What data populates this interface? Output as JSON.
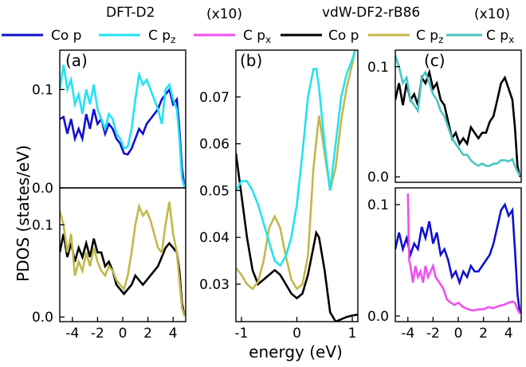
{
  "figure": {
    "ylabel": "PDOS (states/eV)",
    "xlabel": "energy (eV)",
    "legend_left": {
      "title": "DFT-D2",
      "x10": "(x10)",
      "items": [
        {
          "label": "Co p",
          "color": "#1010d0"
        },
        {
          "label": "C p",
          "sub": "z",
          "color": "#22e3f0"
        },
        {
          "label": "C p",
          "sub": "x",
          "color": "#f050f0"
        }
      ]
    },
    "legend_right": {
      "title": "vdW-DF2-rB86",
      "x10": "(x10)",
      "items": [
        {
          "label": "Co p",
          "color": "#000000"
        },
        {
          "label": "C p",
          "sub": "z",
          "color": "#c2b84a"
        },
        {
          "label": "C p",
          "sub": "x",
          "color": "#48c6c4"
        }
      ]
    }
  },
  "chart_data": [
    {
      "panel": "(a) top",
      "type": "line",
      "xlim": [
        -5,
        5
      ],
      "ylim": [
        0,
        0.14
      ],
      "yticks": [
        "0.0",
        "0.1"
      ],
      "series": [
        {
          "name": "Co p",
          "color": "#1010d0",
          "x": [
            -5,
            -4.7,
            -4.4,
            -4.1,
            -3.8,
            -3.5,
            -3.2,
            -2.9,
            -2.6,
            -2.3,
            -2,
            -1.7,
            -1.4,
            -1.1,
            -0.8,
            -0.5,
            -0.2,
            0.1,
            0.4,
            0.7,
            1,
            1.3,
            1.6,
            1.9,
            2.2,
            2.5,
            2.8,
            3.1,
            3.4,
            3.7,
            4,
            4.3,
            4.5,
            4.7,
            4.9
          ],
          "y": [
            0.07,
            0.072,
            0.055,
            0.07,
            0.05,
            0.06,
            0.05,
            0.075,
            0.06,
            0.08,
            0.065,
            0.07,
            0.055,
            0.065,
            0.06,
            0.05,
            0.045,
            0.035,
            0.034,
            0.04,
            0.05,
            0.06,
            0.055,
            0.065,
            0.07,
            0.075,
            0.08,
            0.09,
            0.095,
            0.1,
            0.085,
            0.09,
            0.06,
            0.02,
            0.001
          ]
        },
        {
          "name": "C p_z",
          "color": "#22e3f0",
          "x": [
            -5,
            -4.7,
            -4.4,
            -4.1,
            -3.8,
            -3.5,
            -3.2,
            -2.9,
            -2.6,
            -2.3,
            -2,
            -1.7,
            -1.4,
            -1.1,
            -0.8,
            -0.5,
            -0.2,
            0.1,
            0.4,
            0.7,
            1,
            1.3,
            1.6,
            1.9,
            2.2,
            2.5,
            2.8,
            3.1,
            3.4,
            3.7,
            4,
            4.3,
            4.5,
            4.7,
            4.9
          ],
          "y": [
            0.1,
            0.125,
            0.1,
            0.11,
            0.085,
            0.095,
            0.075,
            0.1,
            0.085,
            0.105,
            0.08,
            0.07,
            0.06,
            0.075,
            0.07,
            0.055,
            0.05,
            0.04,
            0.042,
            0.06,
            0.09,
            0.115,
            0.105,
            0.11,
            0.1,
            0.09,
            0.08,
            0.065,
            0.1,
            0.105,
            0.09,
            0.08,
            0.05,
            0.01,
            0.001
          ]
        }
      ]
    },
    {
      "panel": "(a) bottom",
      "type": "line",
      "xlim": [
        -5,
        5
      ],
      "ylim": [
        -0.005,
        0.14
      ],
      "yticks": [
        "0.0",
        "0.1"
      ],
      "xticks": [
        "-4",
        "-2",
        "0",
        "2",
        "4"
      ],
      "series": [
        {
          "name": "Co p",
          "color": "#000000",
          "x": [
            -5,
            -4.7,
            -4.4,
            -4.1,
            -3.8,
            -3.5,
            -3.2,
            -2.9,
            -2.6,
            -2.3,
            -2,
            -1.7,
            -1.4,
            -1.1,
            -0.8,
            -0.5,
            -0.2,
            0.1,
            0.4,
            0.7,
            1,
            1.3,
            1.6,
            1.9,
            2.2,
            2.5,
            2.8,
            3.1,
            3.4,
            3.7,
            4,
            4.3,
            4.5,
            4.7,
            4.9
          ],
          "y": [
            0.07,
            0.09,
            0.065,
            0.08,
            0.06,
            0.075,
            0.065,
            0.08,
            0.065,
            0.085,
            0.07,
            0.07,
            0.055,
            0.06,
            0.05,
            0.035,
            0.03,
            0.025,
            0.03,
            0.035,
            0.045,
            0.04,
            0.035,
            0.04,
            0.045,
            0.05,
            0.055,
            0.065,
            0.075,
            0.08,
            0.075,
            0.07,
            0.05,
            0.015,
            0.001
          ]
        },
        {
          "name": "C p_z",
          "color": "#c2b84a",
          "x": [
            -5,
            -4.7,
            -4.4,
            -4.1,
            -3.8,
            -3.5,
            -3.2,
            -2.9,
            -2.6,
            -2.3,
            -2,
            -1.7,
            -1.4,
            -1.1,
            -0.8,
            -0.5,
            -0.2,
            0.1,
            0.4,
            0.7,
            1,
            1.3,
            1.6,
            1.9,
            2.2,
            2.5,
            2.8,
            3.1,
            3.4,
            3.7,
            4,
            4.3,
            4.5,
            4.7,
            4.9
          ],
          "y": [
            0.115,
            0.1,
            0.07,
            0.09,
            0.045,
            0.06,
            0.05,
            0.07,
            0.055,
            0.075,
            0.06,
            0.05,
            0.045,
            0.055,
            0.05,
            0.04,
            0.035,
            0.03,
            0.045,
            0.07,
            0.1,
            0.12,
            0.11,
            0.115,
            0.105,
            0.09,
            0.075,
            0.07,
            0.1,
            0.125,
            0.09,
            0.07,
            0.04,
            0.01,
            0.001
          ]
        }
      ]
    },
    {
      "panel": "(b)",
      "type": "line",
      "xlim": [
        -1.1,
        1.1
      ],
      "ylim": [
        0.022,
        0.08
      ],
      "yticks": [
        "0.03",
        "0.04",
        "0.05",
        "0.06",
        "0.07"
      ],
      "xticks": [
        "-1",
        "0",
        "1"
      ],
      "series": [
        {
          "name": "Co p",
          "color": "#000000",
          "x": [
            -1.1,
            -1.0,
            -0.9,
            -0.8,
            -0.7,
            -0.6,
            -0.5,
            -0.4,
            -0.3,
            -0.2,
            -0.1,
            0,
            0.1,
            0.2,
            0.3,
            0.35,
            0.4,
            0.5,
            0.6,
            0.7,
            0.8,
            0.9,
            1.0,
            1.1
          ],
          "y": [
            0.058,
            0.049,
            0.04,
            0.033,
            0.03,
            0.031,
            0.032,
            0.033,
            0.032,
            0.03,
            0.028,
            0.027,
            0.028,
            0.032,
            0.038,
            0.041,
            0.04,
            0.033,
            0.024,
            0.022,
            0.0225,
            0.023,
            0.0233,
            0.0235
          ]
        },
        {
          "name": "C p_z",
          "color": "#c2b84a",
          "x": [
            -1.1,
            -1.0,
            -0.9,
            -0.8,
            -0.7,
            -0.6,
            -0.5,
            -0.4,
            -0.3,
            -0.2,
            -0.1,
            0,
            0.1,
            0.2,
            0.3,
            0.4,
            0.5,
            0.6,
            0.7,
            0.8,
            0.9,
            1.0,
            1.05
          ],
          "y": [
            0.0335,
            0.032,
            0.03,
            0.029,
            0.0305,
            0.035,
            0.042,
            0.0445,
            0.042,
            0.036,
            0.031,
            0.029,
            0.03,
            0.036,
            0.055,
            0.066,
            0.058,
            0.05,
            0.055,
            0.065,
            0.072,
            0.077,
            0.08
          ]
        },
        {
          "name": "C p_x",
          "color": "#22e3f0",
          "x": [
            -1.1,
            -1.0,
            -0.9,
            -0.8,
            -0.7,
            -0.6,
            -0.5,
            -0.4,
            -0.3,
            -0.2,
            -0.1,
            0,
            0.1,
            0.2,
            0.3,
            0.35,
            0.4,
            0.5,
            0.6,
            0.7,
            0.8,
            0.9,
            1.0,
            1.05
          ],
          "y": [
            0.05,
            0.052,
            0.052,
            0.05,
            0.047,
            0.043,
            0.039,
            0.035,
            0.034,
            0.036,
            0.04,
            0.047,
            0.058,
            0.07,
            0.076,
            0.076,
            0.072,
            0.06,
            0.05,
            0.06,
            0.07,
            0.075,
            0.078,
            0.08
          ]
        }
      ]
    },
    {
      "panel": "(c) top",
      "type": "line",
      "xlim": [
        -5,
        5
      ],
      "ylim": [
        -0.005,
        0.115
      ],
      "yticks": [
        "0.0",
        "0.1"
      ],
      "series": [
        {
          "name": "Co p",
          "color": "#000000",
          "x": [
            -5,
            -4.7,
            -4.4,
            -4.1,
            -3.8,
            -3.5,
            -3.2,
            -2.9,
            -2.6,
            -2.3,
            -2,
            -1.7,
            -1.4,
            -1.1,
            -0.8,
            -0.5,
            -0.2,
            0.1,
            0.4,
            0.7,
            1,
            1.3,
            1.6,
            1.9,
            2.2,
            2.5,
            2.8,
            3.1,
            3.4,
            3.7,
            4,
            4.3,
            4.5,
            4.7,
            4.9
          ],
          "y": [
            0.07,
            0.085,
            0.065,
            0.085,
            0.07,
            0.075,
            0.065,
            0.09,
            0.085,
            0.095,
            0.08,
            0.085,
            0.07,
            0.065,
            0.05,
            0.035,
            0.04,
            0.03,
            0.035,
            0.03,
            0.045,
            0.04,
            0.035,
            0.04,
            0.04,
            0.05,
            0.055,
            0.07,
            0.085,
            0.09,
            0.08,
            0.07,
            0.045,
            0.01,
            0.0
          ]
        },
        {
          "name": "C p_x",
          "color": "#48c6c4",
          "x": [
            -5,
            -4.7,
            -4.4,
            -4.1,
            -3.8,
            -3.5,
            -3.2,
            -2.9,
            -2.6,
            -2.3,
            -2,
            -1.7,
            -1.4,
            -1.1,
            -0.8,
            -0.5,
            -0.2,
            0.1,
            0.4,
            0.7,
            1,
            1.3,
            1.6,
            1.9,
            2.2,
            2.5,
            2.8,
            3.1,
            3.4,
            3.7,
            4,
            4.3,
            4.5,
            4.7,
            4.9
          ],
          "y": [
            0.11,
            0.1,
            0.085,
            0.09,
            0.07,
            0.065,
            0.06,
            0.09,
            0.095,
            0.085,
            0.075,
            0.07,
            0.06,
            0.055,
            0.045,
            0.035,
            0.03,
            0.025,
            0.02,
            0.02,
            0.015,
            0.012,
            0.01,
            0.012,
            0.01,
            0.01,
            0.012,
            0.012,
            0.015,
            0.015,
            0.014,
            0.016,
            0.01,
            0.005,
            0.001
          ]
        }
      ]
    },
    {
      "panel": "(c) bottom",
      "type": "line",
      "xlim": [
        -5,
        5
      ],
      "ylim": [
        -0.005,
        0.115
      ],
      "yticks": [
        "0.0",
        "0.1"
      ],
      "xticks": [
        "-4",
        "-2",
        "0",
        "2",
        "4"
      ],
      "series": [
        {
          "name": "Co p",
          "color": "#1010d0",
          "x": [
            -5,
            -4.7,
            -4.4,
            -4.1,
            -3.8,
            -3.5,
            -3.2,
            -2.9,
            -2.6,
            -2.3,
            -2,
            -1.7,
            -1.4,
            -1.1,
            -0.8,
            -0.5,
            -0.2,
            0.1,
            0.4,
            0.7,
            1,
            1.3,
            1.6,
            1.9,
            2.2,
            2.5,
            2.8,
            3.1,
            3.4,
            3.7,
            4,
            4.3,
            4.5,
            4.7,
            4.9
          ],
          "y": [
            0.06,
            0.075,
            0.06,
            0.07,
            0.055,
            0.065,
            0.06,
            0.08,
            0.07,
            0.085,
            0.065,
            0.075,
            0.055,
            0.06,
            0.05,
            0.035,
            0.04,
            0.03,
            0.04,
            0.035,
            0.045,
            0.04,
            0.04,
            0.045,
            0.05,
            0.055,
            0.065,
            0.08,
            0.095,
            0.1,
            0.09,
            0.095,
            0.06,
            0.02,
            0.002
          ]
        },
        {
          "name": "C p_x",
          "color": "#f050f0",
          "x": [
            -4.0,
            -3.95,
            -3.9,
            -3.8,
            -3.6,
            -3.4,
            -3.2,
            -3.0,
            -2.8,
            -2.6,
            -2.4,
            -2.2,
            -2.0,
            -1.8,
            -1.5,
            -1.2,
            -0.9,
            -0.6,
            -0.3,
            0,
            0.4,
            0.8,
            1.2,
            1.6,
            2,
            2.4,
            2.8,
            3.2,
            3.6,
            4,
            4.3,
            4.5,
            4.7,
            4.9
          ],
          "y": [
            0.11,
            0.08,
            0.05,
            0.045,
            0.03,
            0.045,
            0.035,
            0.04,
            0.03,
            0.045,
            0.035,
            0.04,
            0.045,
            0.035,
            0.03,
            0.025,
            0.015,
            0.012,
            0.01,
            0.012,
            0.008,
            0.006,
            0.005,
            0.006,
            0.006,
            0.008,
            0.007,
            0.009,
            0.01,
            0.012,
            0.013,
            0.012,
            0.006,
            0.002
          ]
        }
      ]
    }
  ]
}
